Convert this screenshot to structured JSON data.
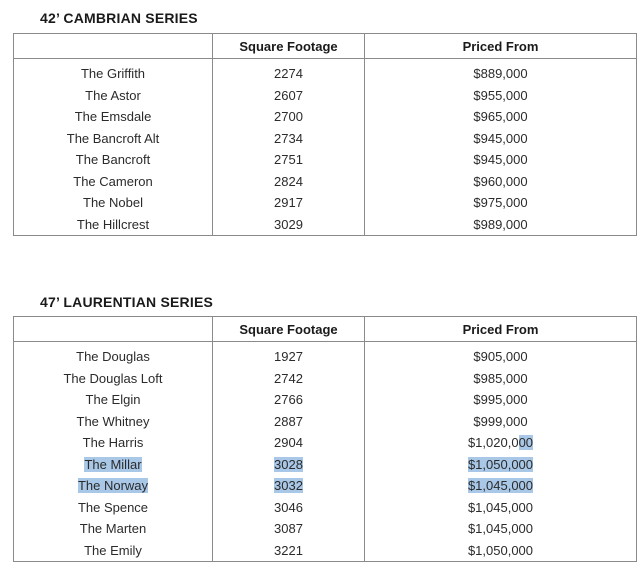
{
  "cambrian": {
    "title": "42’ CAMBRIAN SERIES",
    "headers": {
      "sqft": "Square Footage",
      "price": "Priced From"
    },
    "rows": [
      {
        "name": "The Griffith",
        "sqft": "2274",
        "price": "$889,000"
      },
      {
        "name": "The Astor",
        "sqft": "2607",
        "price": "$955,000"
      },
      {
        "name": "The Emsdale",
        "sqft": "2700",
        "price": "$965,000"
      },
      {
        "name": "The Bancroft Alt",
        "sqft": "2734",
        "price": "$945,000"
      },
      {
        "name": "The Bancroft",
        "sqft": "2751",
        "price": "$945,000"
      },
      {
        "name": "The Cameron",
        "sqft": "2824",
        "price": "$960,000"
      },
      {
        "name": "The Nobel",
        "sqft": "2917",
        "price": "$975,000"
      },
      {
        "name": "The Hillcrest",
        "sqft": "3029",
        "price": "$989,000"
      }
    ]
  },
  "laurentian": {
    "title": "47’ LAURENTIAN SERIES",
    "headers": {
      "sqft": "Square Footage",
      "price": "Priced From"
    },
    "rows": [
      {
        "name": "The Douglas",
        "sqft": "1927",
        "price": "$905,000"
      },
      {
        "name": "The Douglas Loft",
        "sqft": "2742",
        "price": "$985,000"
      },
      {
        "name": "The Elgin",
        "sqft": "2766",
        "price": "$995,000"
      },
      {
        "name": "The Whitney",
        "sqft": "2887",
        "price": "$999,000"
      },
      {
        "name": "The Harris",
        "sqft": "2904",
        "price_pre": "$1,020,0",
        "price_sel": "00"
      },
      {
        "name": "The Millar",
        "sqft": "3028",
        "price": "$1,050,000",
        "selected": true
      },
      {
        "name": "The Norway",
        "sqft": "3032",
        "price": "$1,045,000",
        "selected": true
      },
      {
        "name": "The Spence",
        "sqft": "3046",
        "price": "$1,045,000"
      },
      {
        "name": "The Marten",
        "sqft": "3087",
        "price": "$1,045,000"
      },
      {
        "name": "The Emily",
        "sqft": "3221",
        "price": "$1,050,000"
      }
    ]
  },
  "colors": {
    "selection": "#a9c8e8",
    "border": "#8a8a8a",
    "text": "#2b2b2b"
  }
}
